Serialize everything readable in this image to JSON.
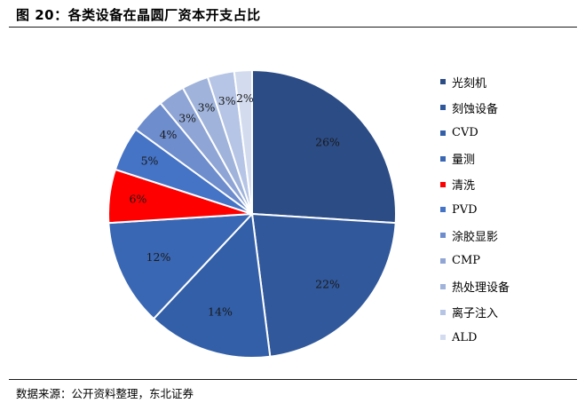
{
  "figure": {
    "title": "图 20：各类设备在晶圆厂资本开支占比",
    "source": "数据来源：公开资料整理，东北证券"
  },
  "chart_data": {
    "type": "pie",
    "title": "图 20：各类设备在晶圆厂资本开支占比",
    "start_angle_deg": 0,
    "direction": "clockwise",
    "legend_position": "right",
    "categories": [
      "光刻机",
      "刻蚀设备",
      "CVD",
      "量测",
      "清洗",
      "PVD",
      "涂胶显影",
      "CMP",
      "热处理设备",
      "离子注入",
      "ALD"
    ],
    "values": [
      26,
      22,
      14,
      12,
      6,
      5,
      4,
      3,
      3,
      3,
      2
    ],
    "labels": [
      "26%",
      "22%",
      "14%",
      "12%",
      "6%",
      "5%",
      "4%",
      "3%",
      "3%",
      "3%",
      "2%"
    ],
    "colors": [
      "#2c4c86",
      "#30589b",
      "#325fa8",
      "#3a67b3",
      "#ff0000",
      "#4573c5",
      "#6e8dcd",
      "#8fa5d5",
      "#9fb3db",
      "#b6c5e5",
      "#d3dcef"
    ]
  }
}
